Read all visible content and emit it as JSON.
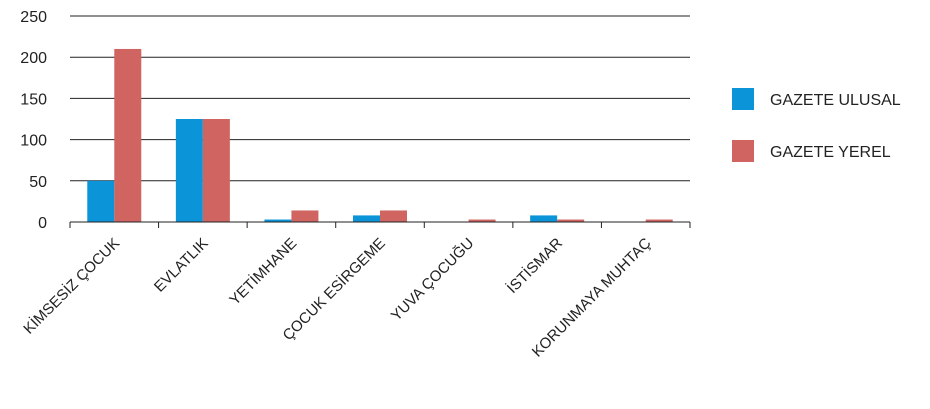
{
  "chart_data": {
    "type": "bar",
    "categories": [
      "KİMSESİZ ÇOCUK",
      "EVLATLIK",
      "YETİMHANE",
      "ÇOCUK ESİRGEME",
      "YUVA ÇOCUĞU",
      "İSTİSMAR",
      "KORUNMAYA MUHTAÇ"
    ],
    "series": [
      {
        "name": "GAZETE ULUSAL",
        "color": "#0b94d8",
        "values": [
          50,
          125,
          3,
          8,
          0,
          8,
          0
        ]
      },
      {
        "name": "GAZETE YEREL",
        "color": "#cf6461",
        "values": [
          210,
          125,
          14,
          14,
          3,
          3,
          3
        ]
      }
    ],
    "yticks": [
      0,
      50,
      100,
      150,
      200,
      250
    ],
    "ylim": [
      0,
      250
    ],
    "grid": true,
    "legend_position": "right"
  }
}
